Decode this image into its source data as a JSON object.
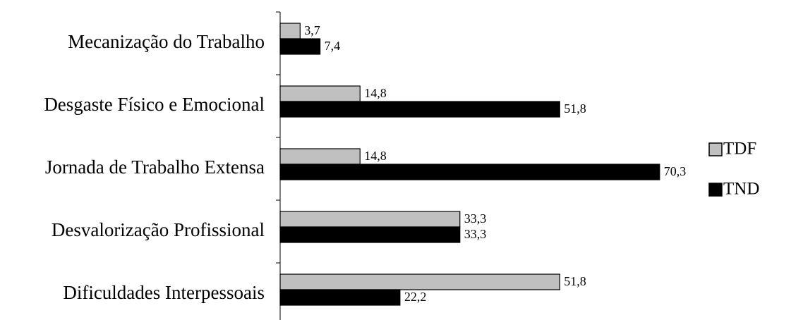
{
  "chart_data": {
    "type": "bar",
    "orientation": "horizontal",
    "categories": [
      "Mecanização do Trabalho",
      "Desgaste Físico e Emocional",
      "Jornada de Trabalho Extensa",
      "Desvalorização Profissional",
      "Dificuldades Interpessoais"
    ],
    "series": [
      {
        "name": "TDF",
        "color": "#c0c0c0",
        "values": [
          3.7,
          14.8,
          14.8,
          33.3,
          51.8
        ],
        "labels": [
          "3,7",
          "14,8",
          "14,8",
          "33,3",
          "51,8"
        ]
      },
      {
        "name": "TND",
        "color": "#000000",
        "values": [
          7.4,
          51.8,
          70.3,
          33.3,
          22.2
        ],
        "labels": [
          "7,4",
          "51,8",
          "70,3",
          "33,3",
          "22,2"
        ]
      }
    ],
    "title": "",
    "xlabel": "",
    "ylabel": "",
    "xlim": [
      0,
      70.3
    ],
    "grid": false,
    "legend": "right"
  }
}
